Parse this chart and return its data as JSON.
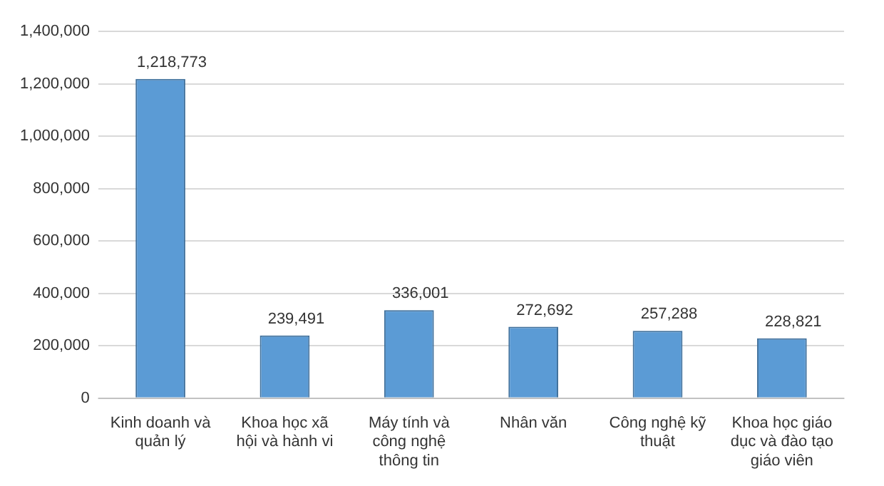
{
  "chart_data": {
    "type": "bar",
    "categories": [
      "Kinh doanh và quản lý",
      "Khoa học xã hội và hành vi",
      "Máy tính và công nghệ thông tin",
      "Nhân văn",
      "Công nghệ kỹ thuật",
      "Khoa học giáo dục và đào tạo giáo viên"
    ],
    "values": [
      1218773,
      239491,
      336001,
      272692,
      257288,
      228821
    ],
    "value_labels": [
      "1,218,773",
      "239,491",
      "336,001",
      "272,692",
      "257,288",
      "228,821"
    ],
    "color": "#5b9bd5",
    "ylim": [
      0,
      1400000
    ],
    "yticks": [
      {
        "value": 0,
        "label": "0"
      },
      {
        "value": 200000,
        "label": "200,000"
      },
      {
        "value": 400000,
        "label": "400,000"
      },
      {
        "value": 600000,
        "label": "600,000"
      },
      {
        "value": 800000,
        "label": "800,000"
      },
      {
        "value": 1000000,
        "label": "1,000,000"
      },
      {
        "value": 1200000,
        "label": "1,200,000"
      },
      {
        "value": 1400000,
        "label": "1,400,000"
      }
    ],
    "grid": "y"
  }
}
